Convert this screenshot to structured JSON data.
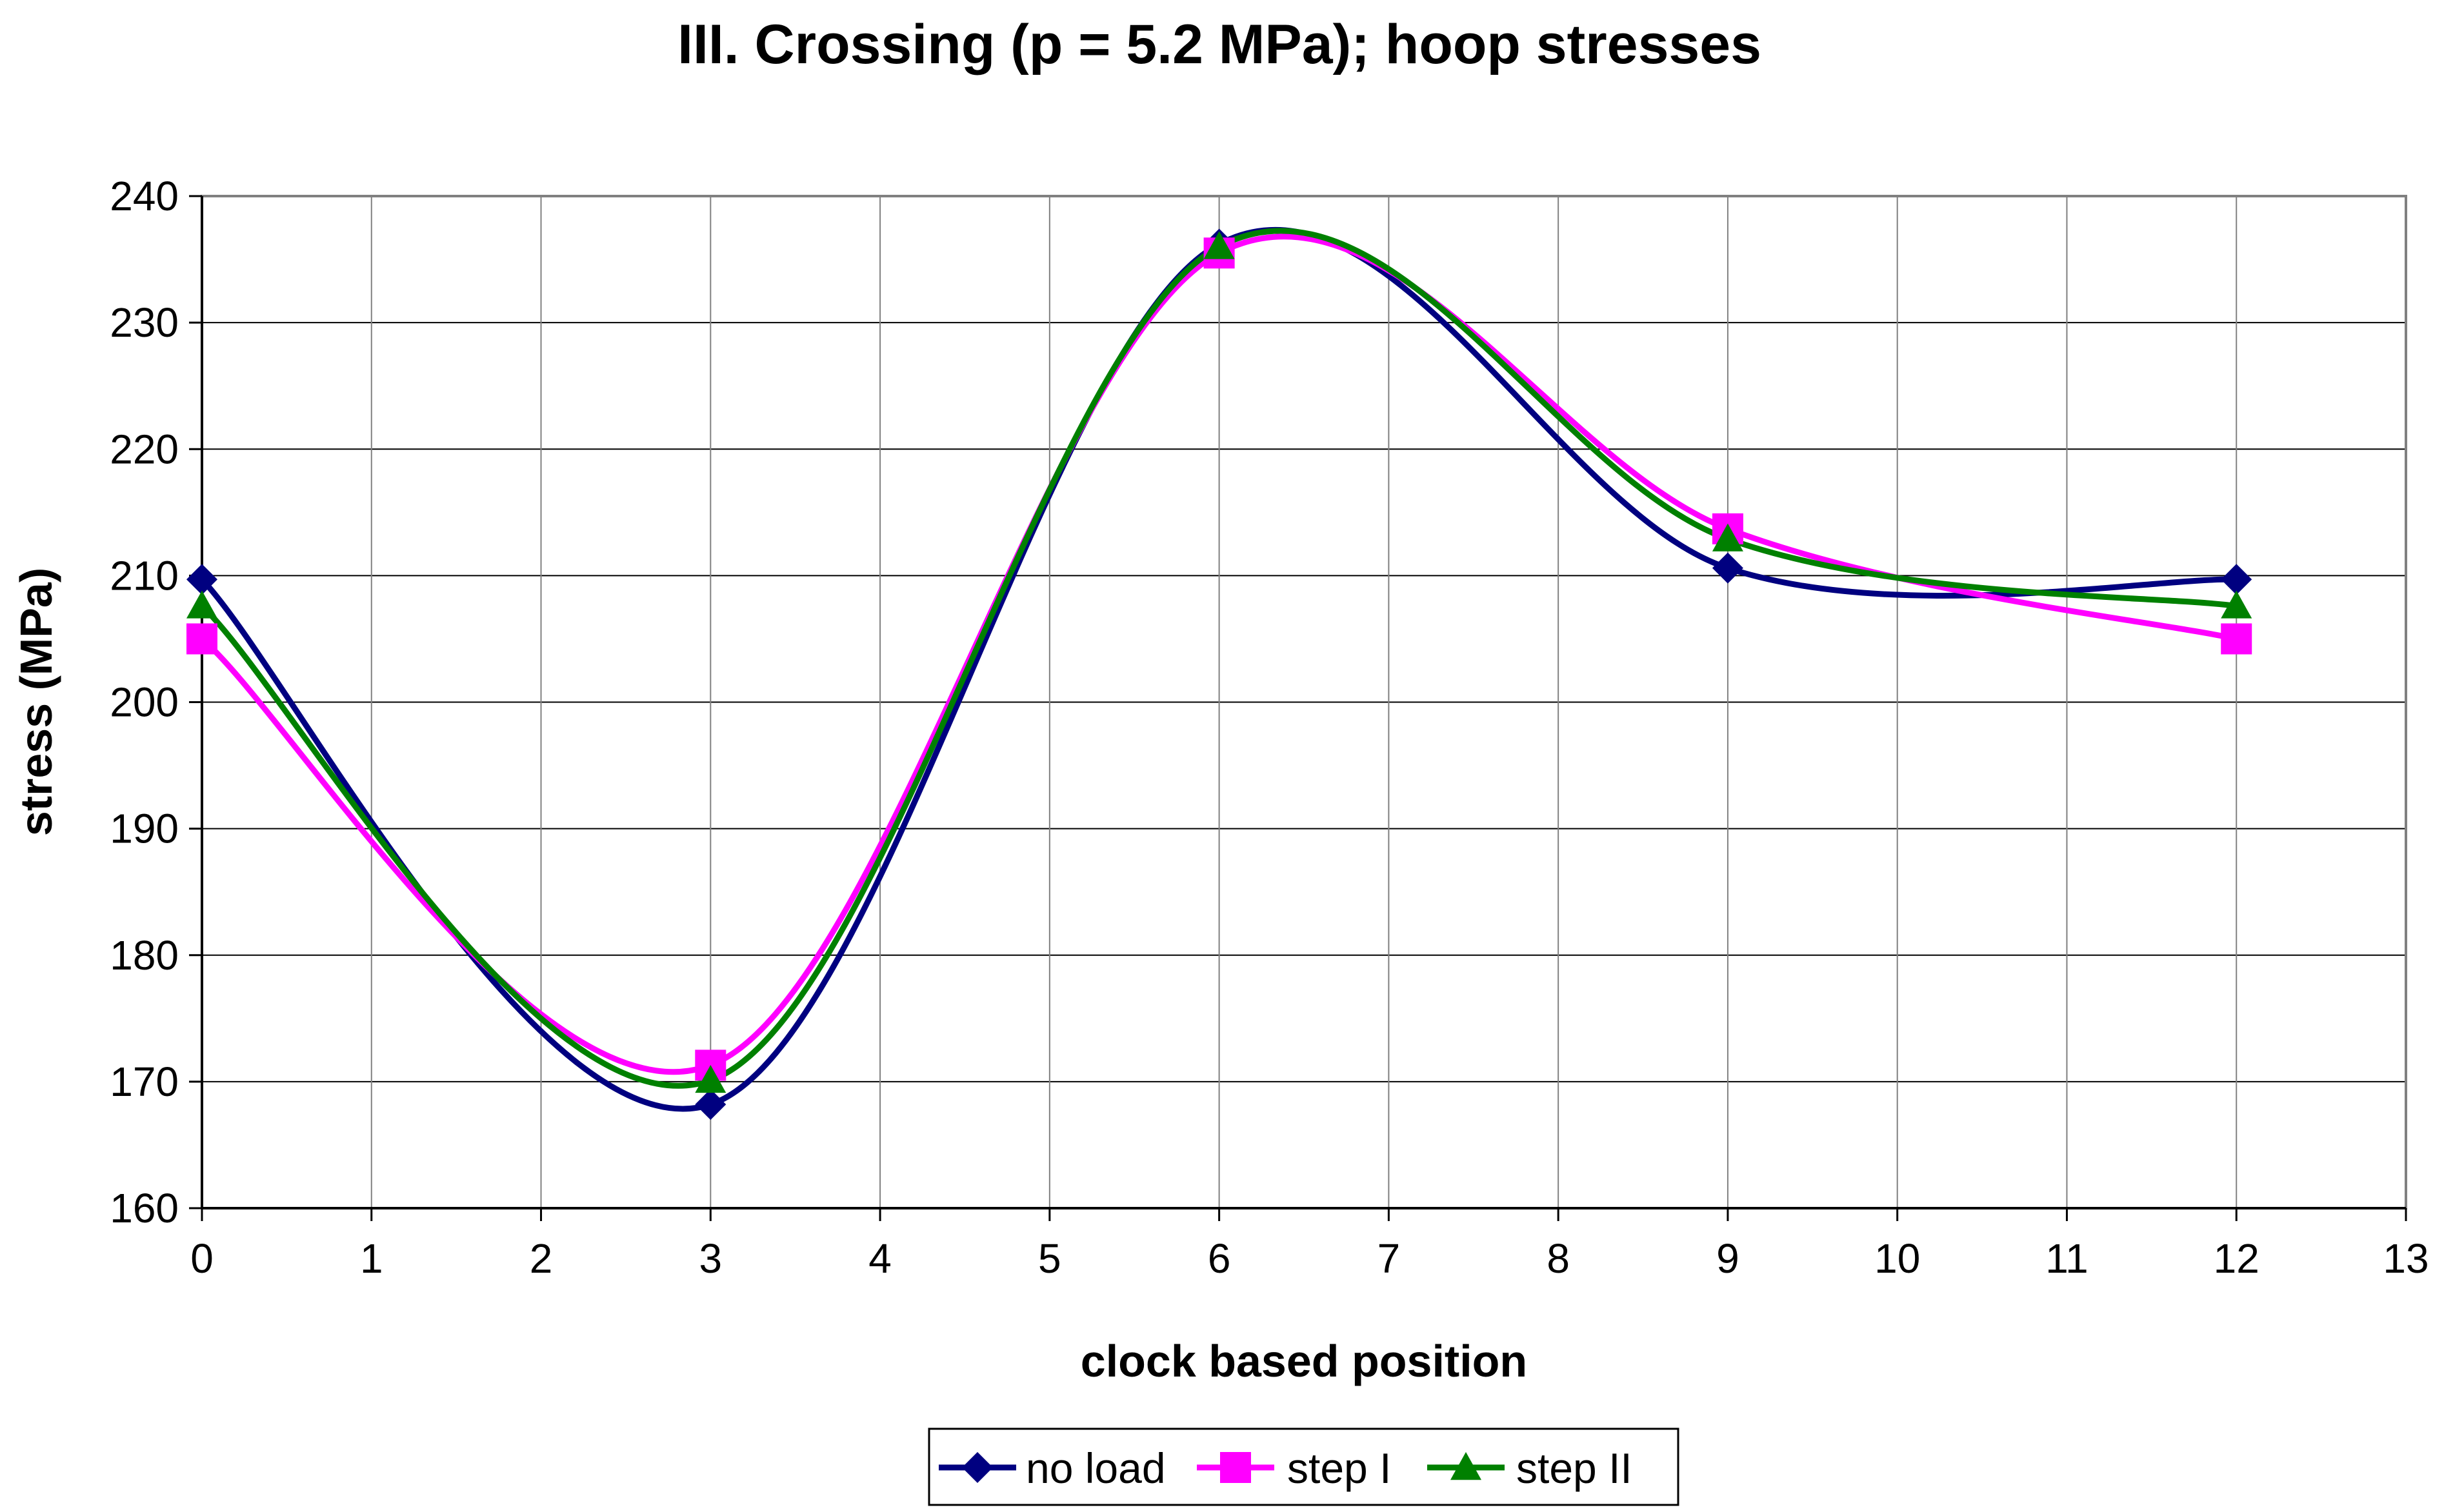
{
  "chart_data": {
    "type": "line",
    "title": "III. Crossing (p = 5.2 MPa); hoop stresses",
    "xlabel": "clock based position",
    "ylabel": "stress (MPa)",
    "xlim": [
      0,
      13
    ],
    "ylim": [
      160,
      240
    ],
    "xticks": [
      0,
      1,
      2,
      3,
      4,
      5,
      6,
      7,
      8,
      9,
      10,
      11,
      12,
      13
    ],
    "yticks": [
      160,
      170,
      180,
      190,
      200,
      210,
      220,
      230,
      240
    ],
    "grid": true,
    "smoothed": true,
    "legend_position": "bottom-center",
    "x": [
      0,
      3,
      6,
      9,
      12
    ],
    "series": [
      {
        "name": "no load",
        "color": "#000080",
        "marker": "diamond",
        "values": [
          209.7,
          168.2,
          236.2,
          210.6,
          209.7
        ]
      },
      {
        "name": "step I",
        "color": "#FF00FF",
        "marker": "square",
        "values": [
          205.0,
          171.3,
          235.5,
          213.7,
          205.0
        ]
      },
      {
        "name": "step II",
        "color": "#008000",
        "marker": "triangle",
        "values": [
          207.6,
          170.1,
          236.0,
          212.9,
          207.6
        ]
      }
    ]
  }
}
